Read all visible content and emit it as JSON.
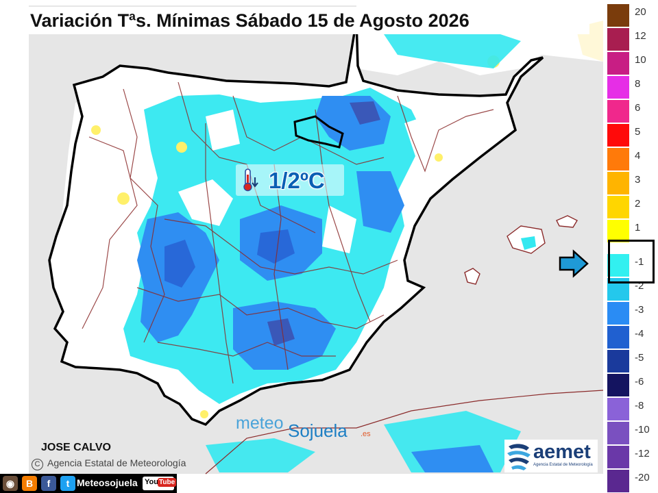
{
  "header": {
    "title": "Variación Tªs. Mínimas Sábado 15 de Agosto 2026"
  },
  "map": {
    "highlight_value": "1/2ºC",
    "colors": {
      "land": "#ffffff",
      "sea": "#e6e6e6",
      "cyan": "#33e8f0",
      "light_blue": "#2f8ef2",
      "blue": "#2868d8",
      "dark_blue": "#3a58b8",
      "yellow": "#fff06a",
      "border": "#000000",
      "province_line": "#8a2a2a"
    }
  },
  "legend": {
    "positive": [
      {
        "label": "20",
        "color": "#7a3c0c"
      },
      {
        "label": "12",
        "color": "#a81e50"
      },
      {
        "label": "10",
        "color": "#c81e84"
      },
      {
        "label": "8",
        "color": "#e62ee6"
      },
      {
        "label": "6",
        "color": "#f0288c"
      },
      {
        "label": "5",
        "color": "#ff0a0a"
      },
      {
        "label": "4",
        "color": "#ff7a0a"
      },
      {
        "label": "3",
        "color": "#ffb400"
      },
      {
        "label": "2",
        "color": "#ffd600"
      },
      {
        "label": "1",
        "color": "#ffff00"
      }
    ],
    "negative": [
      {
        "label": "-1",
        "color": "#32f0f0"
      },
      {
        "label": "-2",
        "color": "#24c8ec"
      },
      {
        "label": "-3",
        "color": "#2a8cf4"
      },
      {
        "label": "-4",
        "color": "#2060d0"
      },
      {
        "label": "-5",
        "color": "#1a3a9c"
      },
      {
        "label": "-6",
        "color": "#141460"
      },
      {
        "label": "-8",
        "color": "#8a62d8"
      },
      {
        "label": "-10",
        "color": "#7a50c0"
      },
      {
        "label": "-12",
        "color": "#6a38a8"
      },
      {
        "label": "-20",
        "color": "#5a2890"
      }
    ],
    "selected_range": [
      "-1",
      "-2"
    ]
  },
  "footer": {
    "author": "JOSE CALVO",
    "agency": "Agencia Estatal de Meteorología",
    "copyright_symbol": "C",
    "watermark": {
      "part1": "meteo",
      "part2": "Sojuela",
      "suffix": ".es"
    },
    "aemet": {
      "word": "aemet",
      "sub": "Agencia Estatal de Meteorología"
    },
    "social": {
      "icons": [
        {
          "icon": "instagram-icon",
          "glyph": "◉",
          "color": "#6b4f3a"
        },
        {
          "icon": "blogger-icon",
          "glyph": "B",
          "color": "#f57d00"
        },
        {
          "icon": "facebook-icon",
          "glyph": "f",
          "color": "#3b5998"
        },
        {
          "icon": "twitter-icon",
          "glyph": "t",
          "color": "#1da1f2"
        }
      ],
      "name": "Meteosojuela",
      "youtube": {
        "you": "You",
        "tube": "Tube"
      }
    }
  }
}
